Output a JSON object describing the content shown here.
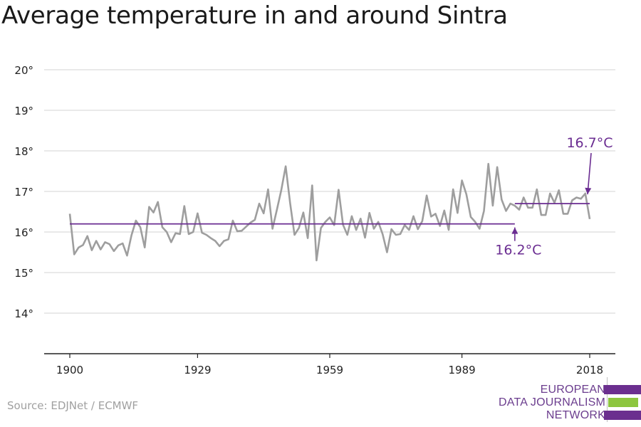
{
  "title": "Average temperature in and around Sintra",
  "source": "Source: EDJNet / ECMWF",
  "logo": {
    "lines": [
      "EUROPEAN",
      "DATA JOURNALISM",
      "NETWORK"
    ],
    "colors": [
      "#6b2f8f",
      "#8dc63f",
      "#6b2f8f"
    ]
  },
  "colors": {
    "series": "#9e9e9e",
    "reference": "#6a2c91",
    "grid": "#dcdcdc",
    "axis": "#222222",
    "text": "#222222"
  },
  "chart_data": {
    "type": "line",
    "title": "Average temperature in and around Sintra",
    "xlim": [
      1900,
      2018
    ],
    "ylim": [
      13,
      20
    ],
    "y_ticks": [
      14,
      15,
      16,
      17,
      18,
      19,
      20
    ],
    "y_tick_labels": [
      "14°",
      "15°",
      "16°",
      "17°",
      "18°",
      "19°",
      "20°"
    ],
    "x_ticks": [
      1900,
      1929,
      1959,
      1989,
      2018
    ],
    "x_tick_labels": [
      "1900",
      "1929",
      "1959",
      "1989",
      "2018"
    ],
    "grid": "horizontal",
    "series": [
      {
        "x": [
          1900,
          1901,
          1902,
          1903,
          1904,
          1905,
          1906,
          1907,
          1908,
          1909,
          1910,
          1911,
          1912,
          1913,
          1914,
          1915,
          1916,
          1917,
          1918,
          1919,
          1920,
          1921,
          1922,
          1923,
          1924,
          1925,
          1926,
          1927,
          1928,
          1929,
          1930,
          1931,
          1932,
          1933,
          1934,
          1935,
          1936,
          1937,
          1938,
          1939,
          1940,
          1941,
          1942,
          1943,
          1944,
          1945,
          1946,
          1947,
          1948,
          1949,
          1950,
          1951,
          1952,
          1953,
          1954,
          1955,
          1956,
          1957,
          1958,
          1959,
          1960,
          1961,
          1962,
          1963,
          1964,
          1965,
          1966,
          1967,
          1968,
          1969,
          1970,
          1971,
          1972,
          1973,
          1974,
          1975,
          1976,
          1977,
          1978,
          1979,
          1980,
          1981,
          1982,
          1983,
          1984,
          1985,
          1986,
          1987,
          1988,
          1989,
          1990,
          1991,
          1992,
          1993,
          1994,
          1995,
          1996,
          1997,
          1998,
          1999,
          2000,
          2001,
          2002,
          2003,
          2004,
          2005,
          2006,
          2007,
          2008,
          2009,
          2010,
          2011,
          2012,
          2013,
          2014,
          2015,
          2016,
          2017,
          2018
        ],
        "values": [
          16.45,
          15.45,
          15.62,
          15.68,
          15.9,
          15.55,
          15.78,
          15.57,
          15.75,
          15.7,
          15.53,
          15.67,
          15.72,
          15.42,
          15.92,
          16.28,
          16.12,
          15.62,
          16.62,
          16.48,
          16.74,
          16.12,
          16.0,
          15.75,
          15.97,
          15.95,
          16.64,
          15.95,
          16.0,
          16.46,
          15.98,
          15.93,
          15.85,
          15.78,
          15.65,
          15.78,
          15.82,
          16.28,
          16.02,
          16.03,
          16.13,
          16.23,
          16.3,
          16.7,
          16.46,
          17.05,
          16.08,
          16.55,
          17.03,
          17.62,
          16.72,
          15.93,
          16.1,
          16.48,
          15.85,
          17.15,
          15.3,
          16.1,
          16.25,
          16.36,
          16.17,
          17.04,
          16.18,
          15.93,
          16.39,
          16.05,
          16.33,
          15.86,
          16.47,
          16.08,
          16.25,
          15.95,
          15.5,
          16.07,
          15.93,
          15.95,
          16.17,
          16.05,
          16.39,
          16.07,
          16.27,
          16.9,
          16.38,
          16.45,
          16.15,
          16.53,
          16.05,
          17.05,
          16.47,
          17.27,
          16.93,
          16.37,
          16.25,
          16.08,
          16.52,
          17.68,
          16.65,
          17.6,
          16.8,
          16.52,
          16.7,
          16.65,
          16.55,
          16.85,
          16.6,
          16.6,
          17.05,
          16.42,
          16.42,
          16.95,
          16.72,
          17.03,
          16.45,
          16.45,
          16.78,
          16.85,
          16.82,
          16.95,
          16.32
        ]
      }
    ],
    "reference_lines": [
      {
        "label": "16.2°C",
        "value": 16.2,
        "x_start": 1900,
        "x_end": 2001
      },
      {
        "label": "16.7°C",
        "value": 16.7,
        "x_start": 2001,
        "x_end": 2018
      }
    ]
  }
}
